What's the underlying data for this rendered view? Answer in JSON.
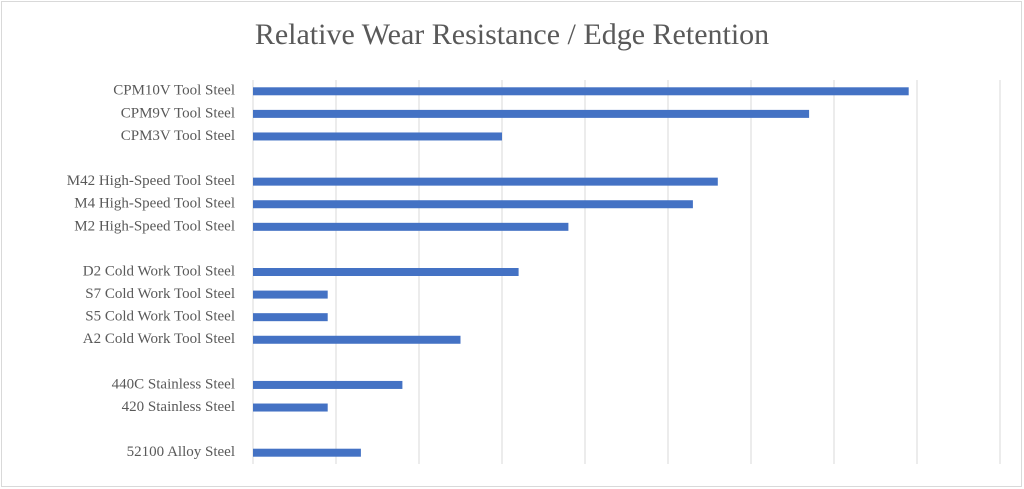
{
  "chart_data": {
    "type": "barh",
    "title": "Relative Wear Resistance / Edge Retention",
    "categories": [
      "CPM10V Tool Steel",
      "CPM9V Tool Steel",
      "CPM3V Tool Steel",
      null,
      "M42 High-Speed Tool Steel",
      "M4 High-Speed Tool Steel",
      "M2 High-Speed Tool Steel",
      null,
      "D2 Cold Work Tool Steel",
      "S7 Cold Work Tool Steel",
      "S5 Cold Work Tool Steel",
      "A2 Cold Work Tool Steel",
      null,
      "440C Stainless Steel",
      "420 Stainless Steel",
      null,
      "52100 Alloy Steel"
    ],
    "values": [
      7.9,
      6.7,
      3.0,
      null,
      5.6,
      5.3,
      3.8,
      null,
      3.2,
      0.9,
      0.9,
      2.5,
      null,
      1.8,
      0.9,
      null,
      1.3
    ],
    "color": "#4472c4",
    "xlim": [
      0,
      9
    ],
    "xticks": [
      0,
      1,
      2,
      3,
      4,
      5,
      6,
      7,
      8,
      9
    ],
    "grid": true
  }
}
